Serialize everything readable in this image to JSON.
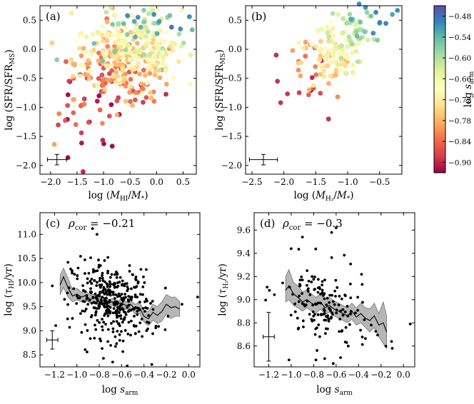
{
  "chart_data": [
    {
      "id": "a",
      "type": "scatter",
      "panel_label": "(a)",
      "xlabel": "log (M_HI/M_*)",
      "ylabel": "log (SFR/SFR_MS)",
      "xlim": [
        -2.2,
        0.75
      ],
      "ylim": [
        -2.15,
        0.75
      ],
      "xticks": [
        -2.0,
        -1.5,
        -1.0,
        -0.5,
        0.0,
        0.5
      ],
      "xtick_labels": [
        "−2.0",
        "−1.5",
        "−1.0",
        "−0.5",
        "0.0",
        "0.5"
      ],
      "yticks": [
        -2.0,
        -1.5,
        -1.0,
        -0.5,
        0.0,
        0.5
      ],
      "ytick_labels": [
        "−2.0",
        "−1.5",
        "−1.0",
        "−0.5",
        "0.0",
        "0.5"
      ],
      "color_by": "log s_arm",
      "n_points": 380,
      "error_bar": {
        "x": -1.88,
        "y": -1.9,
        "xerr": 0.18,
        "yerr": 0.09
      },
      "points": [
        {
          "x": 0.62,
          "y": 0.56,
          "c": -0.5
        },
        {
          "x": 0.45,
          "y": 0.35,
          "c": -0.5
        },
        {
          "x": -0.55,
          "y": 0.58,
          "c": -0.5
        },
        {
          "x": -0.35,
          "y": 0.55,
          "c": -0.5
        },
        {
          "x": -0.42,
          "y": 0.48,
          "c": -0.52
        },
        {
          "x": 0.05,
          "y": 0.48,
          "c": -0.51
        },
        {
          "x": -0.05,
          "y": 0.6,
          "c": -0.5
        },
        {
          "x": -1.18,
          "y": 0.1,
          "c": -0.55
        },
        {
          "x": -1.02,
          "y": -0.2,
          "c": -0.55
        },
        {
          "x": -0.3,
          "y": 0.38,
          "c": -0.53
        },
        {
          "x": -0.62,
          "y": 0.44,
          "c": -0.54
        },
        {
          "x": -1.88,
          "y": -0.18,
          "c": -0.57
        }
      ]
    },
    {
      "id": "b",
      "type": "scatter",
      "panel_label": "(b)",
      "xlabel": "log (M_H2/M_*)",
      "ylabel": "log (SFR/SFR_MS)",
      "xlim": [
        -2.6,
        -0.15
      ],
      "ylim": [
        -2.15,
        0.75
      ],
      "xticks": [
        -2.5,
        -2.0,
        -1.5,
        -1.0,
        -0.5
      ],
      "xtick_labels": [
        "−2.5",
        "−2.0",
        "−1.5",
        "−1.0",
        "−0.5"
      ],
      "yticks": [
        -2.0,
        -1.5,
        -1.0,
        -0.5,
        0.0,
        0.5
      ],
      "ytick_labels": [
        "−2.0",
        "−1.5",
        "−1.0",
        "−0.5",
        "0.0",
        "0.5"
      ],
      "color_by": "log s_arm",
      "n_points": 170,
      "error_bar": {
        "x": -2.32,
        "y": -1.9,
        "xerr": 0.22,
        "yerr": 0.09
      },
      "points": [
        {
          "x": -0.22,
          "y": 0.67,
          "c": -0.5
        },
        {
          "x": -0.3,
          "y": 0.6,
          "c": -0.52
        },
        {
          "x": -0.82,
          "y": 0.78,
          "c": -0.5
        },
        {
          "x": -0.72,
          "y": 0.72,
          "c": -0.5
        },
        {
          "x": -0.5,
          "y": 0.45,
          "c": -0.51
        },
        {
          "x": -0.95,
          "y": 0.52,
          "c": -0.52
        },
        {
          "x": -2.05,
          "y": -0.92,
          "c": -0.9
        },
        {
          "x": -2.1,
          "y": -0.55,
          "c": -0.9
        },
        {
          "x": -2.12,
          "y": -0.1,
          "c": -0.9
        },
        {
          "x": -1.3,
          "y": -1.2,
          "c": -0.9
        }
      ]
    },
    {
      "id": "c",
      "type": "scatter",
      "panel_label": "(c)",
      "rho_label": "ρcor = −0.21",
      "xlabel": "log s_arm",
      "ylabel": "log (τHI/yr)",
      "xlim": [
        -1.33,
        0.1
      ],
      "ylim": [
        8.25,
        11.45
      ],
      "xticks": [
        -1.2,
        -1.0,
        -0.8,
        -0.6,
        -0.4,
        -0.2,
        0.0
      ],
      "xtick_labels": [
        "−1.2",
        "−1.0",
        "−0.8",
        "−0.6",
        "−0.4",
        "−0.2",
        "0.0"
      ],
      "yticks": [
        8.5,
        9.0,
        9.5,
        10.0,
        10.5,
        11.0
      ],
      "ytick_labels": [
        "8.5",
        "9.0",
        "9.5",
        "10.0",
        "10.5",
        "11.0"
      ],
      "n_points": 380,
      "error_bar": {
        "x": -1.22,
        "y": 8.81,
        "xerr": 0.05,
        "yerr": 0.19
      },
      "running_median": {
        "x": [
          -1.15,
          -1.12,
          -1.08,
          -1.04,
          -1.0,
          -0.96,
          -0.92,
          -0.88,
          -0.84,
          -0.8,
          -0.76,
          -0.72,
          -0.68,
          -0.64,
          -0.6,
          -0.56,
          -0.52,
          -0.48,
          -0.44,
          -0.4,
          -0.36,
          -0.32,
          -0.28,
          -0.24,
          -0.2,
          -0.16,
          -0.12,
          -0.08
        ],
        "y": [
          9.95,
          10.12,
          9.9,
          9.72,
          9.76,
          9.7,
          9.73,
          9.65,
          9.68,
          9.6,
          9.62,
          9.58,
          9.6,
          9.55,
          9.58,
          9.52,
          9.55,
          9.45,
          9.48,
          9.3,
          9.25,
          9.38,
          9.32,
          9.4,
          9.55,
          9.48,
          9.5,
          9.45
        ],
        "lo": [
          9.75,
          9.9,
          9.7,
          9.6,
          9.64,
          9.6,
          9.63,
          9.57,
          9.6,
          9.53,
          9.55,
          9.52,
          9.53,
          9.48,
          9.5,
          9.44,
          9.46,
          9.35,
          9.36,
          9.18,
          9.1,
          9.22,
          9.15,
          9.2,
          9.35,
          9.25,
          9.3,
          9.3
        ],
        "hi": [
          10.15,
          10.3,
          10.1,
          9.85,
          9.88,
          9.8,
          9.83,
          9.74,
          9.76,
          9.68,
          9.7,
          9.65,
          9.67,
          9.62,
          9.66,
          9.6,
          9.64,
          9.55,
          9.6,
          9.42,
          9.4,
          9.55,
          9.5,
          9.6,
          9.75,
          9.7,
          9.7,
          9.6
        ]
      },
      "points": [
        {
          "x": -0.86,
          "y": 11.12
        },
        {
          "x": -0.82,
          "y": 11.0
        },
        {
          "x": -1.08,
          "y": 10.42
        },
        {
          "x": -0.06,
          "y": 9.55
        },
        {
          "x": 0.08,
          "y": 9.7
        },
        {
          "x": -0.68,
          "y": 8.35
        },
        {
          "x": -0.33,
          "y": 8.3
        },
        {
          "x": -0.55,
          "y": 8.27
        }
      ]
    },
    {
      "id": "d",
      "type": "scatter",
      "panel_label": "(d)",
      "rho_label": "ρcor = −0.3",
      "xlabel": "log s_arm",
      "ylabel": "log (τH2/yr)",
      "xlim": [
        -1.33,
        0.1
      ],
      "ylim": [
        8.42,
        9.75
      ],
      "xticks": [
        -1.2,
        -1.0,
        -0.8,
        -0.6,
        -0.4,
        -0.2,
        0.0
      ],
      "xtick_labels": [
        "−1.2",
        "−1.0",
        "−0.8",
        "−0.6",
        "−0.4",
        "−0.2",
        "0.0"
      ],
      "yticks": [
        8.6,
        8.8,
        9.0,
        9.2,
        9.4,
        9.6
      ],
      "ytick_labels": [
        "8.6",
        "8.8",
        "9.0",
        "9.2",
        "9.4",
        "9.6"
      ],
      "n_points": 170,
      "error_bar": {
        "x": -1.2,
        "y": 8.68,
        "xerr": 0.05,
        "yerr": 0.21
      },
      "running_median": {
        "x": [
          -1.05,
          -1.02,
          -0.98,
          -0.94,
          -0.9,
          -0.86,
          -0.82,
          -0.78,
          -0.74,
          -0.7,
          -0.66,
          -0.62,
          -0.58,
          -0.54,
          -0.5,
          -0.46,
          -0.42,
          -0.38,
          -0.34,
          -0.3,
          -0.26,
          -0.22,
          -0.18,
          -0.15
        ],
        "y": [
          9.08,
          9.12,
          9.05,
          9.02,
          8.98,
          9.0,
          8.97,
          8.95,
          8.98,
          8.93,
          8.95,
          8.92,
          8.9,
          8.88,
          8.86,
          8.9,
          8.85,
          8.88,
          8.84,
          8.82,
          8.86,
          8.78,
          8.8,
          8.72
        ],
        "lo": [
          8.98,
          9.0,
          8.95,
          8.93,
          8.9,
          8.93,
          8.9,
          8.88,
          8.92,
          8.87,
          8.89,
          8.86,
          8.84,
          8.82,
          8.8,
          8.83,
          8.78,
          8.8,
          8.76,
          8.72,
          8.76,
          8.68,
          8.62,
          8.58
        ],
        "hi": [
          9.2,
          9.26,
          9.15,
          9.12,
          9.07,
          9.08,
          9.05,
          9.02,
          9.05,
          9.0,
          9.02,
          8.99,
          8.97,
          8.95,
          8.93,
          8.97,
          8.93,
          8.97,
          8.93,
          8.92,
          8.97,
          8.88,
          8.98,
          8.86
        ]
      },
      "points": [
        {
          "x": -0.6,
          "y": 9.62
        },
        {
          "x": -0.64,
          "y": 9.58
        },
        {
          "x": -0.9,
          "y": 9.54
        },
        {
          "x": -1.0,
          "y": 9.44
        },
        {
          "x": 0.06,
          "y": 8.79
        },
        {
          "x": -0.1,
          "y": 8.58
        },
        {
          "x": -1.02,
          "y": 8.48
        },
        {
          "x": -0.56,
          "y": 8.5
        },
        {
          "x": -0.78,
          "y": 8.48
        }
      ]
    },
    {
      "id": "colorbar",
      "type": "colorbar",
      "label": "log s_arm",
      "clim": [
        -0.93,
        -0.45
      ],
      "ticks": [
        -0.48,
        -0.54,
        -0.6,
        -0.66,
        -0.72,
        -0.78,
        -0.84,
        -0.9
      ],
      "tick_labels": [
        "−0.48",
        "−0.54",
        "−0.60",
        "−0.66",
        "−0.72",
        "−0.78",
        "−0.84",
        "−0.90"
      ],
      "colormap": [
        "#9e0142",
        "#d53e4f",
        "#f46d43",
        "#fdae61",
        "#fee08b",
        "#ffffbf",
        "#e6f598",
        "#abdda4",
        "#66c2a5",
        "#3288bd",
        "#5e4fa2"
      ]
    }
  ]
}
